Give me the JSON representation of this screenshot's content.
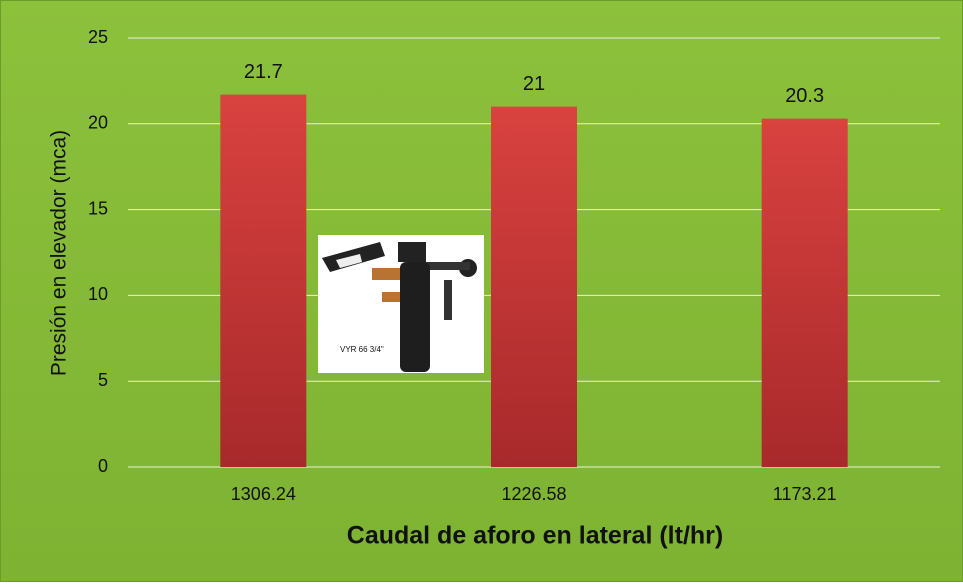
{
  "chart_data": {
    "type": "bar",
    "x_label": "Caudal de aforo en lateral (lt/hr)",
    "y_label": "Presión en elevador (mca)",
    "categories": [
      "1306.24",
      "1226.58",
      "1173.21"
    ],
    "values": [
      21.7,
      21,
      20.3
    ],
    "color": "#cf3b3b",
    "ylim": [
      0,
      25
    ],
    "yticks": [
      0,
      5,
      10,
      15,
      20,
      25
    ],
    "grid": true,
    "annotation": "VYR 66 3/4\""
  }
}
